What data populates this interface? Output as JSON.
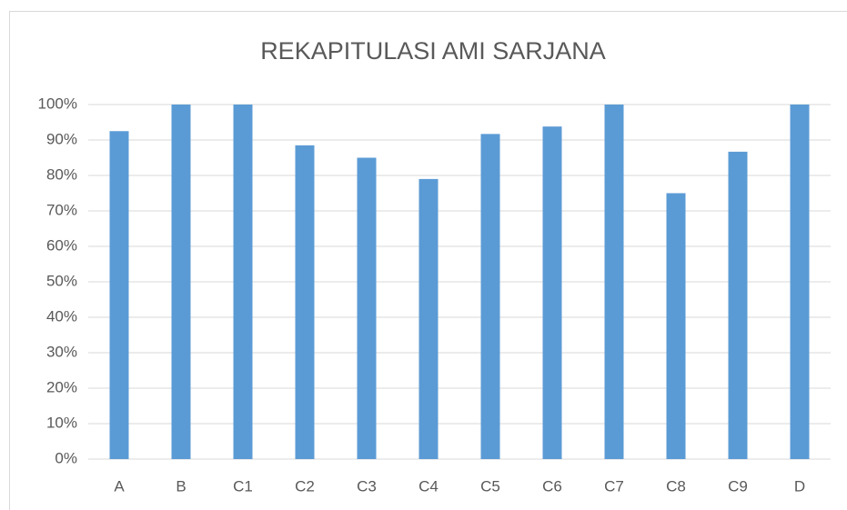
{
  "chart_data": {
    "type": "bar",
    "title": "REKAPITULASI AMI SARJANA",
    "categories": [
      "A",
      "B",
      "C1",
      "C2",
      "C3",
      "C4",
      "C5",
      "C6",
      "C7",
      "C8",
      "C9",
      "D"
    ],
    "values": [
      92.5,
      100,
      100,
      88.5,
      85,
      79,
      91.7,
      93.8,
      100,
      75,
      86.7,
      100
    ],
    "color": "#5b9bd5",
    "ylim": [
      0,
      100
    ],
    "yticks": [
      {
        "value": 0,
        "label": "0%"
      },
      {
        "value": 10,
        "label": "10%"
      },
      {
        "value": 20,
        "label": "20%"
      },
      {
        "value": 30,
        "label": "30%"
      },
      {
        "value": 40,
        "label": "40%"
      },
      {
        "value": 50,
        "label": "50%"
      },
      {
        "value": 60,
        "label": "60%"
      },
      {
        "value": 70,
        "label": "70%"
      },
      {
        "value": 80,
        "label": "80%"
      },
      {
        "value": 90,
        "label": "90%"
      },
      {
        "value": 100,
        "label": "100%"
      }
    ],
    "grid": true
  }
}
